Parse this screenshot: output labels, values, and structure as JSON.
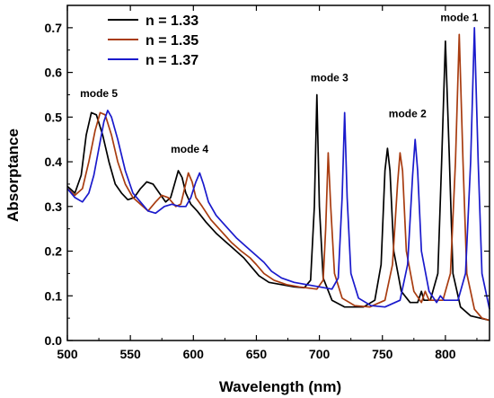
{
  "chart_data": {
    "type": "line",
    "title": "",
    "xlabel": "Wavelength (nm)",
    "ylabel": "Absorptance",
    "xlim": [
      500,
      835
    ],
    "ylim": [
      0.0,
      0.75
    ],
    "xticks": [
      500,
      550,
      600,
      650,
      700,
      750,
      800
    ],
    "yticks": [
      0.0,
      0.1,
      0.2,
      0.3,
      0.4,
      0.5,
      0.6,
      0.7
    ],
    "xtick_labels": [
      "500",
      "550",
      "600",
      "650",
      "700",
      "750",
      "800"
    ],
    "ytick_labels": [
      "0.0",
      "0.1",
      "0.2",
      "0.3",
      "0.4",
      "0.5",
      "0.6",
      "0.7"
    ],
    "grid": false,
    "legend_position": "top-left",
    "series": [
      {
        "name": "n = 1.33",
        "color": "#000000",
        "points": [
          [
            500,
            0.345
          ],
          [
            506,
            0.33
          ],
          [
            511,
            0.37
          ],
          [
            515,
            0.46
          ],
          [
            519,
            0.51
          ],
          [
            523,
            0.505
          ],
          [
            528,
            0.46
          ],
          [
            533,
            0.4
          ],
          [
            538,
            0.35
          ],
          [
            543,
            0.33
          ],
          [
            548,
            0.315
          ],
          [
            553,
            0.32
          ],
          [
            558,
            0.34
          ],
          [
            563,
            0.355
          ],
          [
            568,
            0.35
          ],
          [
            573,
            0.33
          ],
          [
            578,
            0.31
          ],
          [
            582,
            0.32
          ],
          [
            585,
            0.35
          ],
          [
            588,
            0.38
          ],
          [
            591,
            0.365
          ],
          [
            594,
            0.33
          ],
          [
            598,
            0.305
          ],
          [
            603,
            0.29
          ],
          [
            610,
            0.265
          ],
          [
            618,
            0.24
          ],
          [
            626,
            0.22
          ],
          [
            634,
            0.2
          ],
          [
            640,
            0.185
          ],
          [
            646,
            0.165
          ],
          [
            652,
            0.145
          ],
          [
            660,
            0.13
          ],
          [
            670,
            0.125
          ],
          [
            680,
            0.12
          ],
          [
            688,
            0.118
          ],
          [
            693,
            0.135
          ],
          [
            696,
            0.3
          ],
          [
            698,
            0.55
          ],
          [
            700,
            0.3
          ],
          [
            703,
            0.14
          ],
          [
            710,
            0.09
          ],
          [
            720,
            0.075
          ],
          [
            735,
            0.075
          ],
          [
            744,
            0.09
          ],
          [
            749,
            0.17
          ],
          [
            752,
            0.38
          ],
          [
            754,
            0.43
          ],
          [
            756,
            0.38
          ],
          [
            759,
            0.2
          ],
          [
            765,
            0.11
          ],
          [
            772,
            0.085
          ],
          [
            778,
            0.085
          ],
          [
            781,
            0.11
          ],
          [
            783,
            0.09
          ],
          [
            788,
            0.09
          ],
          [
            794,
            0.15
          ],
          [
            797,
            0.4
          ],
          [
            800,
            0.67
          ],
          [
            803,
            0.42
          ],
          [
            806,
            0.15
          ],
          [
            812,
            0.075
          ],
          [
            820,
            0.055
          ],
          [
            835,
            0.045
          ]
        ]
      },
      {
        "name": "n = 1.35",
        "color": "#a83c10",
        "points": [
          [
            500,
            0.34
          ],
          [
            506,
            0.325
          ],
          [
            512,
            0.34
          ],
          [
            517,
            0.4
          ],
          [
            522,
            0.47
          ],
          [
            526,
            0.51
          ],
          [
            530,
            0.505
          ],
          [
            535,
            0.46
          ],
          [
            540,
            0.4
          ],
          [
            546,
            0.35
          ],
          [
            552,
            0.32
          ],
          [
            558,
            0.305
          ],
          [
            564,
            0.29
          ],
          [
            570,
            0.31
          ],
          [
            575,
            0.325
          ],
          [
            580,
            0.32
          ],
          [
            586,
            0.3
          ],
          [
            590,
            0.305
          ],
          [
            593,
            0.34
          ],
          [
            596,
            0.375
          ],
          [
            599,
            0.355
          ],
          [
            602,
            0.32
          ],
          [
            607,
            0.3
          ],
          [
            614,
            0.27
          ],
          [
            622,
            0.245
          ],
          [
            630,
            0.22
          ],
          [
            638,
            0.2
          ],
          [
            645,
            0.185
          ],
          [
            650,
            0.17
          ],
          [
            656,
            0.15
          ],
          [
            664,
            0.135
          ],
          [
            674,
            0.125
          ],
          [
            684,
            0.12
          ],
          [
            698,
            0.115
          ],
          [
            703,
            0.135
          ],
          [
            705,
            0.25
          ],
          [
            707,
            0.42
          ],
          [
            709,
            0.3
          ],
          [
            712,
            0.15
          ],
          [
            718,
            0.095
          ],
          [
            728,
            0.078
          ],
          [
            740,
            0.075
          ],
          [
            752,
            0.09
          ],
          [
            758,
            0.17
          ],
          [
            762,
            0.35
          ],
          [
            764,
            0.42
          ],
          [
            766,
            0.38
          ],
          [
            769,
            0.2
          ],
          [
            775,
            0.11
          ],
          [
            781,
            0.085
          ],
          [
            784,
            0.11
          ],
          [
            787,
            0.09
          ],
          [
            798,
            0.09
          ],
          [
            804,
            0.15
          ],
          [
            808,
            0.4
          ],
          [
            811,
            0.685
          ],
          [
            814,
            0.4
          ],
          [
            817,
            0.15
          ],
          [
            823,
            0.07
          ],
          [
            829,
            0.05
          ],
          [
            835,
            0.045
          ]
        ]
      },
      {
        "name": "n = 1.37",
        "color": "#1a1acc",
        "points": [
          [
            500,
            0.34
          ],
          [
            506,
            0.32
          ],
          [
            512,
            0.31
          ],
          [
            517,
            0.33
          ],
          [
            521,
            0.37
          ],
          [
            525,
            0.43
          ],
          [
            529,
            0.49
          ],
          [
            532,
            0.515
          ],
          [
            535,
            0.5
          ],
          [
            540,
            0.45
          ],
          [
            546,
            0.38
          ],
          [
            552,
            0.33
          ],
          [
            558,
            0.31
          ],
          [
            564,
            0.29
          ],
          [
            570,
            0.285
          ],
          [
            577,
            0.3
          ],
          [
            583,
            0.305
          ],
          [
            589,
            0.3
          ],
          [
            594,
            0.3
          ],
          [
            598,
            0.32
          ],
          [
            602,
            0.355
          ],
          [
            605,
            0.375
          ],
          [
            608,
            0.35
          ],
          [
            612,
            0.31
          ],
          [
            618,
            0.28
          ],
          [
            626,
            0.255
          ],
          [
            634,
            0.23
          ],
          [
            642,
            0.21
          ],
          [
            650,
            0.19
          ],
          [
            656,
            0.175
          ],
          [
            662,
            0.155
          ],
          [
            670,
            0.14
          ],
          [
            680,
            0.13
          ],
          [
            690,
            0.125
          ],
          [
            700,
            0.12
          ],
          [
            710,
            0.115
          ],
          [
            715,
            0.14
          ],
          [
            718,
            0.32
          ],
          [
            720,
            0.51
          ],
          [
            722,
            0.32
          ],
          [
            725,
            0.15
          ],
          [
            731,
            0.095
          ],
          [
            741,
            0.078
          ],
          [
            752,
            0.075
          ],
          [
            764,
            0.09
          ],
          [
            770,
            0.17
          ],
          [
            774,
            0.37
          ],
          [
            776,
            0.45
          ],
          [
            778,
            0.38
          ],
          [
            781,
            0.2
          ],
          [
            787,
            0.11
          ],
          [
            793,
            0.085
          ],
          [
            796,
            0.1
          ],
          [
            799,
            0.09
          ],
          [
            810,
            0.09
          ],
          [
            816,
            0.15
          ],
          [
            820,
            0.4
          ],
          [
            823,
            0.7
          ],
          [
            826,
            0.4
          ],
          [
            829,
            0.15
          ],
          [
            835,
            0.07
          ]
        ]
      }
    ],
    "annotations": [
      {
        "text": "mode 1",
        "x": 811,
        "y": 0.715
      },
      {
        "text": "mode 2",
        "x": 770,
        "y": 0.5
      },
      {
        "text": "mode 3",
        "x": 708,
        "y": 0.58
      },
      {
        "text": "mode 4",
        "x": 597,
        "y": 0.42
      },
      {
        "text": "mode 5",
        "x": 525,
        "y": 0.545
      }
    ]
  }
}
